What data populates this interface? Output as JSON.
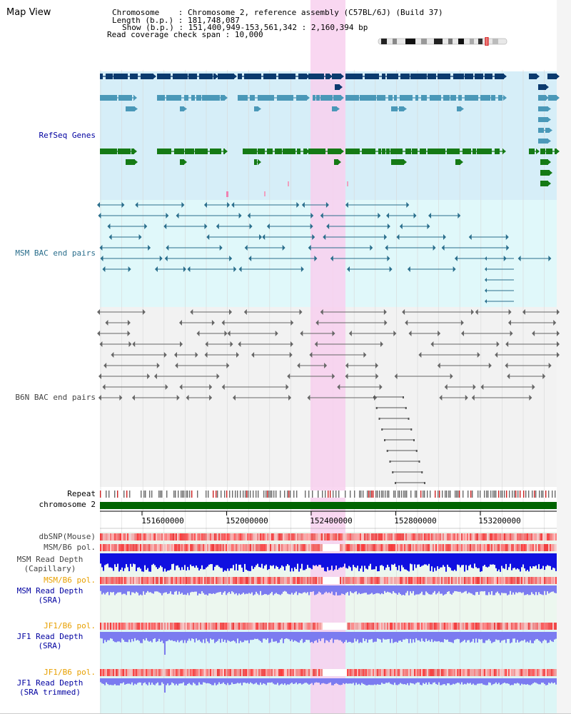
{
  "page": {
    "title": "Map View"
  },
  "header": {
    "chromosome_label": "Chromosome",
    "chromosome_value": "Chromosome 2, reference assembly (C57BL/6J) (Build 37)",
    "length_label": "Length (b.p.)",
    "length_value": "181,748,087",
    "show_label": "Show (b.p.)",
    "show_value": "151,400,949-153,561,342 : 2,160,394 bp",
    "coverage_label": "Read coverage check span",
    "coverage_value": "10,000"
  },
  "tracks": {
    "refseq": "RefSeq Genes",
    "msm_bac": "MSM BAC end pairs",
    "b6n_bac": "B6N BAC end pairs",
    "repeat": "Repeat",
    "chromosome": "chromosome 2",
    "dbsnp": "dbSNP(Mouse)",
    "msm_b6_pol_1": "MSM/B6 pol.",
    "msm_depth_cap_1": "MSM Read Depth",
    "msm_depth_cap_2": "(Capillary)",
    "msm_b6_pol_2": "MSM/B6 pol.",
    "msm_depth_sra_1": "MSM Read Depth",
    "msm_depth_sra_2": "(SRA)",
    "jf1_b6_pol_1": "JF1/B6 pol.",
    "jf1_depth_sra_1": "JF1 Read Depth",
    "jf1_depth_sra_2": "(SRA)",
    "jf1_b6_pol_2": "JF1/B6 pol.",
    "jf1_depth_trim_1": "JF1 Read Depth",
    "jf1_depth_trim_2": "(SRA trimmed)"
  },
  "axis": {
    "ticks": [
      "151600000",
      "152000000",
      "152400000",
      "152800000",
      "153200000"
    ],
    "tick_values": [
      151600000,
      152000000,
      152400000,
      152800000,
      153200000
    ],
    "start": 151400949,
    "end": 153561342
  },
  "colors": {
    "refseq_bg": "#d6eef8",
    "msm_bg": "#e0f8fa",
    "b6n_bg": "#f2f2f2",
    "gene_navy": "#0b3a6e",
    "gene_blue": "#4a98b8",
    "gene_green": "#157a15",
    "highlight": "#f8d0ee",
    "chrom_green": "#006400",
    "depth_blue": "#1010e0",
    "depth_light": "#7b7bf0"
  }
}
